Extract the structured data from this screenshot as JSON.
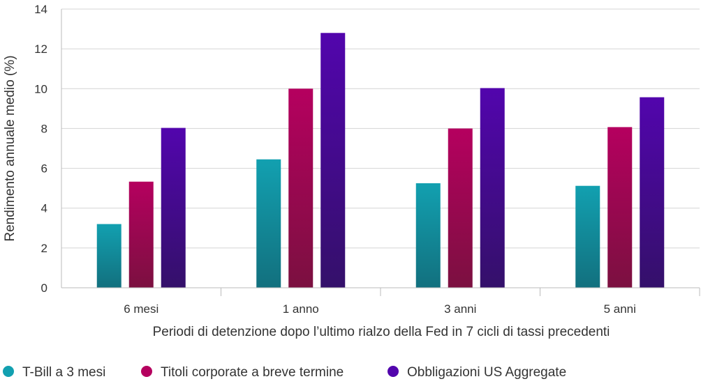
{
  "chart_data": {
    "type": "bar",
    "title": "",
    "xlabel": "Periodi di detenzione dopo l’ultimo rialzo della Fed in 7 cicli di tassi precedenti",
    "ylabel": "Rendimento annuale medio (%)",
    "ylim": [
      0,
      14
    ],
    "yticks": [
      0,
      2,
      4,
      6,
      8,
      10,
      12,
      14
    ],
    "grid": true,
    "legend_position": "bottom-left",
    "categories": [
      "6 mesi",
      "1 anno",
      "3 anni",
      "5 anni"
    ],
    "series": [
      {
        "name": "T-Bill a 3 mesi",
        "values": [
          3.2,
          6.45,
          5.25,
          5.12
        ],
        "color": "#12a0b0",
        "color_dark": "#12707e"
      },
      {
        "name": "Titoli corporate a breve termine",
        "values": [
          5.33,
          10.0,
          8.0,
          8.07
        ],
        "color": "#b5005f",
        "color_dark": "#7b1040"
      },
      {
        "name": "Obbligazioni US Aggregate",
        "values": [
          8.03,
          12.8,
          10.03,
          9.57
        ],
        "color": "#5205ad",
        "color_dark": "#34106a"
      }
    ]
  }
}
